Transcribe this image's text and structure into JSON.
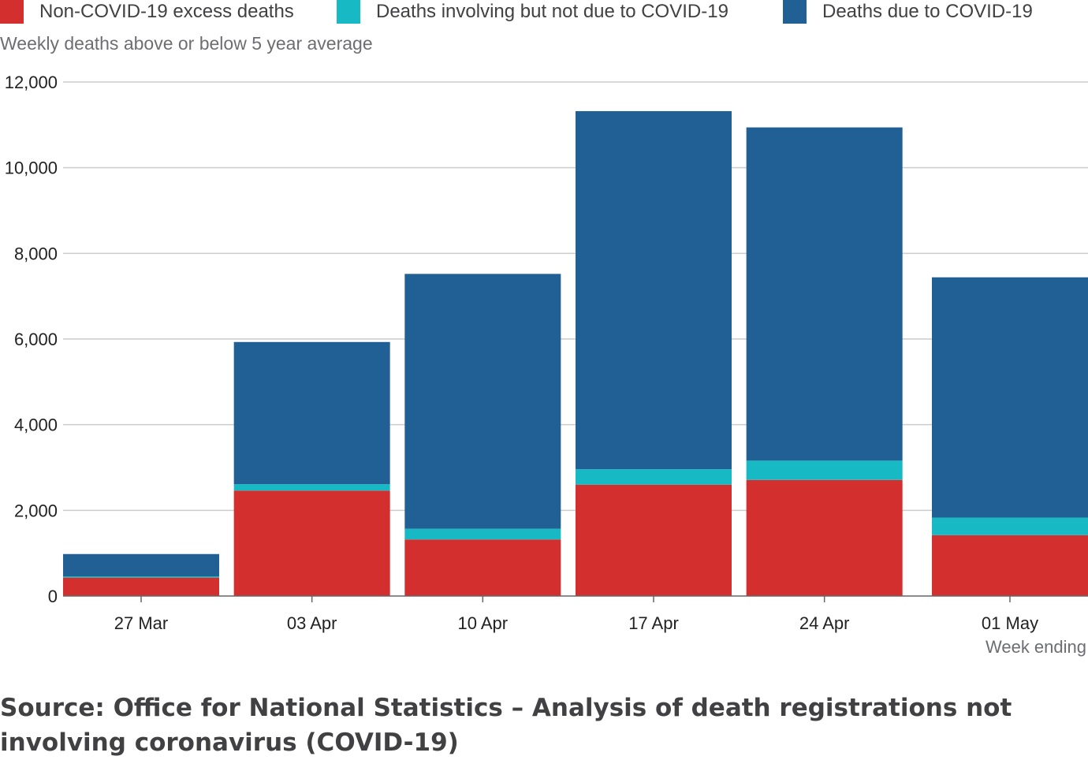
{
  "legend": [
    {
      "label": "Non-COVID-19 excess deaths",
      "color": "#d32f2f"
    },
    {
      "label": "Deaths involving but not due to COVID-19",
      "color": "#17b9c5"
    },
    {
      "label": "Deaths due to COVID-19",
      "color": "#206095"
    }
  ],
  "subtitle": "Weekly deaths above or below 5 year average",
  "source": "Source: Office for National Statistics – Analysis of death registrations not involving coronavirus (COVID-19)",
  "chart_data": {
    "type": "bar",
    "stacked": true,
    "categories": [
      "27 Mar",
      "03 Apr",
      "10 Apr",
      "17 Apr",
      "24 Apr",
      "01 May"
    ],
    "series": [
      {
        "name": "Non-COVID-19 excess deaths",
        "color": "#d32f2f",
        "values": [
          430,
          2460,
          1320,
          2600,
          2710,
          1420
        ]
      },
      {
        "name": "Deaths involving but not due to COVID-19",
        "color": "#17b9c5",
        "values": [
          30,
          150,
          250,
          360,
          450,
          410
        ]
      },
      {
        "name": "Deaths due to COVID-19",
        "color": "#206095",
        "values": [
          520,
          3320,
          5950,
          8360,
          7780,
          5610
        ]
      }
    ],
    "yticks": [
      0,
      2000,
      4000,
      6000,
      8000,
      10000,
      12000
    ],
    "ytick_labels": [
      "0",
      "2,000",
      "4,000",
      "6,000",
      "8,000",
      "10,000",
      "12,000"
    ],
    "ylim": [
      0,
      12000
    ],
    "xlabel": "Week ending",
    "grid": true,
    "legend_position": "top"
  }
}
